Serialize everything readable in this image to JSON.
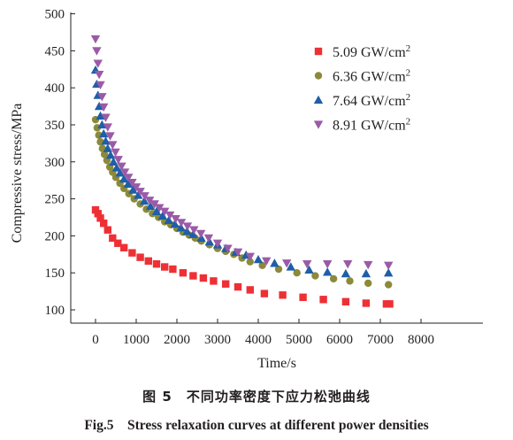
{
  "chart_data": {
    "type": "scatter",
    "xlabel": "Time/s",
    "ylabel": "Compressive stress/MPa",
    "xlim": [
      -600,
      8000
    ],
    "ylim": [
      90,
      500
    ],
    "xticks": [
      "0",
      "1000",
      "2000",
      "3000",
      "4000",
      "5000",
      "6000",
      "7000",
      "8000"
    ],
    "yticks": [
      "100",
      "150",
      "200",
      "250",
      "300",
      "350",
      "400",
      "450",
      "500"
    ],
    "legend_position": "top-right",
    "series": [
      {
        "name": "5.09 GW/cm2",
        "label_main": "5.09 GW/cm",
        "label_sup": "2",
        "marker": "square",
        "color": "#ee3035",
        "points": [
          [
            0,
            235
          ],
          [
            60,
            230
          ],
          [
            120,
            224
          ],
          [
            200,
            217
          ],
          [
            300,
            208
          ],
          [
            420,
            197
          ],
          [
            550,
            190
          ],
          [
            700,
            184
          ],
          [
            900,
            177
          ],
          [
            1100,
            171
          ],
          [
            1300,
            166
          ],
          [
            1500,
            162
          ],
          [
            1700,
            158
          ],
          [
            1900,
            155
          ],
          [
            2150,
            150
          ],
          [
            2400,
            146
          ],
          [
            2650,
            143
          ],
          [
            2900,
            139
          ],
          [
            3200,
            135
          ],
          [
            3500,
            131
          ],
          [
            3800,
            127
          ],
          [
            4150,
            122
          ],
          [
            4600,
            120
          ],
          [
            5100,
            117
          ],
          [
            5600,
            114
          ],
          [
            6150,
            111
          ],
          [
            6650,
            109
          ],
          [
            7150,
            108
          ],
          [
            7230,
            108
          ]
        ]
      },
      {
        "name": "6.36 GW/cm2",
        "label_main": "6.36 GW/cm",
        "label_sup": "2",
        "marker": "circle",
        "color": "#8b8a3a",
        "points": [
          [
            0,
            357
          ],
          [
            40,
            346
          ],
          [
            80,
            336
          ],
          [
            120,
            327
          ],
          [
            170,
            318
          ],
          [
            220,
            310
          ],
          [
            280,
            302
          ],
          [
            350,
            293
          ],
          [
            420,
            286
          ],
          [
            500,
            279
          ],
          [
            600,
            271
          ],
          [
            700,
            264
          ],
          [
            820,
            257
          ],
          [
            950,
            250
          ],
          [
            1100,
            243
          ],
          [
            1250,
            236
          ],
          [
            1400,
            230
          ],
          [
            1550,
            225
          ],
          [
            1700,
            219
          ],
          [
            1850,
            215
          ],
          [
            2000,
            210
          ],
          [
            2150,
            205
          ],
          [
            2300,
            201
          ],
          [
            2450,
            197
          ],
          [
            2600,
            193
          ],
          [
            2800,
            188
          ],
          [
            3000,
            183
          ],
          [
            3200,
            179
          ],
          [
            3400,
            175
          ],
          [
            3600,
            170
          ],
          [
            3800,
            165
          ],
          [
            4100,
            160
          ],
          [
            4500,
            155
          ],
          [
            4950,
            150
          ],
          [
            5400,
            146
          ],
          [
            5850,
            142
          ],
          [
            6250,
            139
          ],
          [
            6700,
            136
          ],
          [
            7200,
            134
          ]
        ]
      },
      {
        "name": "7.64 GW/cm2",
        "label_main": "7.64 GW/cm",
        "label_sup": "2",
        "marker": "triangle-up",
        "color": "#1f5ea8",
        "points": [
          [
            0,
            424
          ],
          [
            30,
            405
          ],
          [
            60,
            390
          ],
          [
            90,
            375
          ],
          [
            120,
            362
          ],
          [
            160,
            350
          ],
          [
            200,
            338
          ],
          [
            250,
            328
          ],
          [
            300,
            318
          ],
          [
            370,
            309
          ],
          [
            440,
            300
          ],
          [
            520,
            292
          ],
          [
            600,
            285
          ],
          [
            700,
            277
          ],
          [
            800,
            270
          ],
          [
            920,
            262
          ],
          [
            1050,
            255
          ],
          [
            1200,
            247
          ],
          [
            1350,
            240
          ],
          [
            1500,
            233
          ],
          [
            1650,
            227
          ],
          [
            1800,
            221
          ],
          [
            1950,
            216
          ],
          [
            2100,
            211
          ],
          [
            2250,
            206
          ],
          [
            2400,
            202
          ],
          [
            2600,
            197
          ],
          [
            2800,
            192
          ],
          [
            3000,
            188
          ],
          [
            3200,
            183
          ],
          [
            3450,
            178
          ],
          [
            3700,
            174
          ],
          [
            4000,
            168
          ],
          [
            4400,
            163
          ],
          [
            4800,
            158
          ],
          [
            5250,
            154
          ],
          [
            5700,
            151
          ],
          [
            6150,
            149
          ],
          [
            6650,
            149
          ],
          [
            7200,
            150
          ]
        ]
      },
      {
        "name": "8.91 GW/cm2",
        "label_main": "8.91 GW/cm",
        "label_sup": "2",
        "marker": "triangle-down",
        "color": "#9a5ba6",
        "points": [
          [
            0,
            466
          ],
          [
            30,
            450
          ],
          [
            60,
            433
          ],
          [
            90,
            418
          ],
          [
            120,
            404
          ],
          [
            160,
            388
          ],
          [
            200,
            374
          ],
          [
            250,
            360
          ],
          [
            300,
            347
          ],
          [
            360,
            335
          ],
          [
            420,
            323
          ],
          [
            490,
            313
          ],
          [
            560,
            303
          ],
          [
            640,
            294
          ],
          [
            720,
            286
          ],
          [
            810,
            279
          ],
          [
            900,
            272
          ],
          [
            1000,
            266
          ],
          [
            1100,
            260
          ],
          [
            1210,
            254
          ],
          [
            1330,
            248
          ],
          [
            1450,
            243
          ],
          [
            1570,
            238
          ],
          [
            1700,
            233
          ],
          [
            1830,
            228
          ],
          [
            1970,
            223
          ],
          [
            2110,
            218
          ],
          [
            2260,
            213
          ],
          [
            2420,
            208
          ],
          [
            2590,
            203
          ],
          [
            2780,
            197
          ],
          [
            3000,
            190
          ],
          [
            3250,
            183
          ],
          [
            3500,
            178
          ],
          [
            3800,
            172
          ],
          [
            4200,
            166
          ],
          [
            4700,
            163
          ],
          [
            5200,
            162
          ],
          [
            5700,
            162
          ],
          [
            6200,
            162
          ],
          [
            6700,
            161
          ],
          [
            7200,
            160
          ]
        ]
      }
    ]
  },
  "captions": {
    "cn": "图 5　不同功率密度下应力松弛曲线",
    "en": "Fig.5　Stress relaxation curves at different power densities"
  }
}
